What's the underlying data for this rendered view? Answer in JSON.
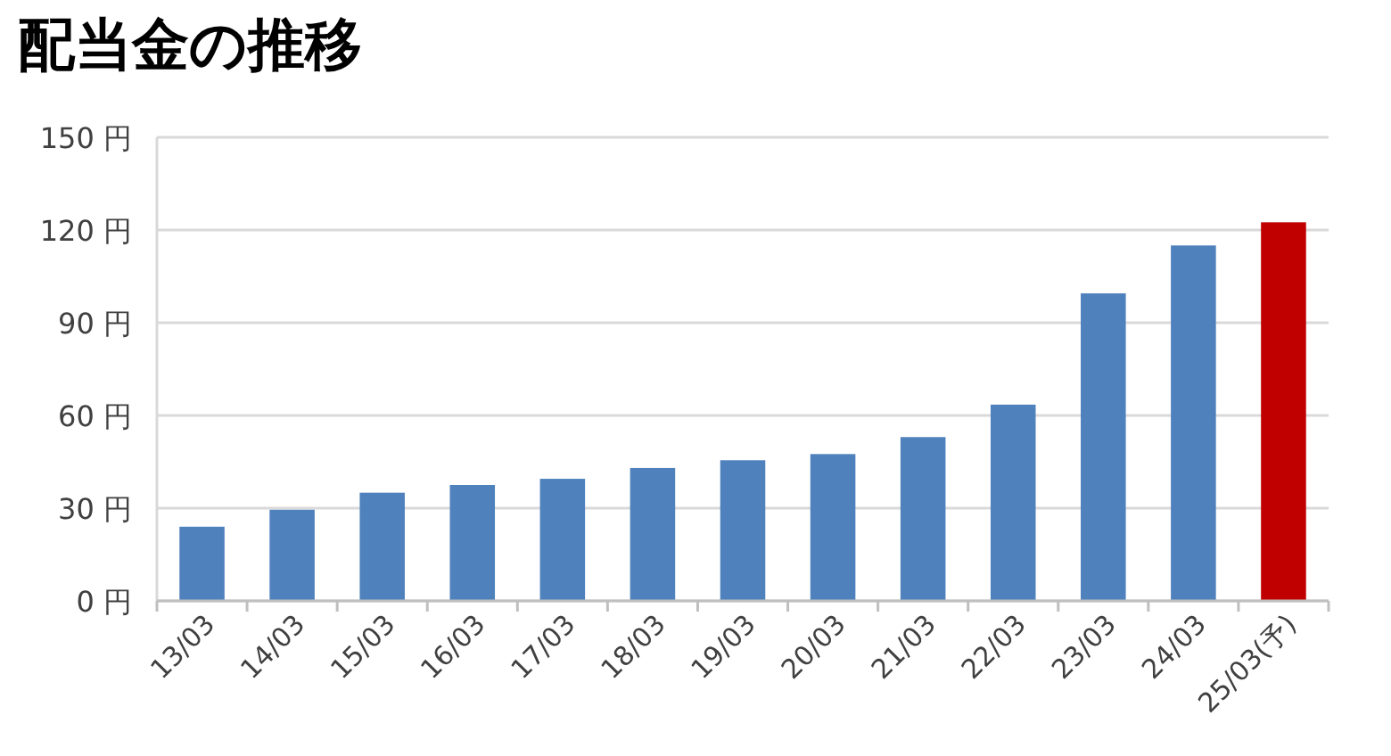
{
  "chart_data": {
    "type": "bar",
    "title": "配当金の推移",
    "categories": [
      "13/03",
      "14/03",
      "15/03",
      "16/03",
      "17/03",
      "18/03",
      "19/03",
      "20/03",
      "21/03",
      "22/03",
      "23/03",
      "24/03",
      "25/03(予)"
    ],
    "values": [
      24,
      29.5,
      35,
      37.5,
      39.5,
      43,
      45.5,
      47.5,
      53,
      63.5,
      99.5,
      115,
      122.5
    ],
    "colors": [
      "#4f81bd",
      "#4f81bd",
      "#4f81bd",
      "#4f81bd",
      "#4f81bd",
      "#4f81bd",
      "#4f81bd",
      "#4f81bd",
      "#4f81bd",
      "#4f81bd",
      "#4f81bd",
      "#4f81bd",
      "#c00000"
    ],
    "ylim": [
      0,
      150
    ],
    "yticks": [
      {
        "value": 0,
        "label": "0 円"
      },
      {
        "value": 30,
        "label": "30 円"
      },
      {
        "value": 60,
        "label": "60 円"
      },
      {
        "value": 90,
        "label": "90 円"
      },
      {
        "value": 120,
        "label": "120 円"
      },
      {
        "value": 150,
        "label": "150 円"
      }
    ],
    "grid": "y"
  }
}
